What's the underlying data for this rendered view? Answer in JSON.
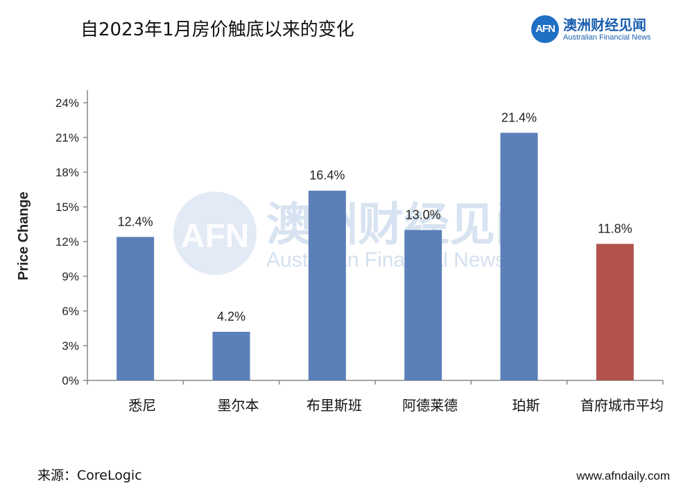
{
  "title": "自2023年1月房价触底以来的变化",
  "logo": {
    "mark": "AFN",
    "name_cn": "澳洲财经见闻",
    "name_en": "Australian Financial News"
  },
  "watermark": {
    "mark": "AFN",
    "name_cn": "澳洲财经见闻",
    "name_en": "Australian Financial News"
  },
  "source": "来源：CoreLogic",
  "site": "www.afndaily.com",
  "colors": {
    "bar": "#5b7fb8",
    "highlight_bar": "#b2544d",
    "brand": "#1f6fc4"
  },
  "chart_data": {
    "type": "bar",
    "ylabel": "Price Change",
    "ylim": [
      0,
      24
    ],
    "yticks": [
      "0%",
      "3%",
      "6%",
      "9%",
      "12%",
      "15%",
      "18%",
      "21%",
      "24%"
    ],
    "ytick_values": [
      0,
      3,
      6,
      9,
      12,
      15,
      18,
      21,
      24
    ],
    "categories": [
      "悉尼",
      "墨尔本",
      "布里斯班",
      "阿德莱德",
      "珀斯",
      "首府城市平均"
    ],
    "values": [
      12.4,
      4.2,
      16.4,
      13.0,
      21.4,
      11.8
    ],
    "labels": [
      "12.4%",
      "4.2%",
      "16.4%",
      "13.0%",
      "21.4%",
      "11.8%"
    ],
    "highlight_index": 5,
    "grid": false,
    "legend": "none"
  }
}
